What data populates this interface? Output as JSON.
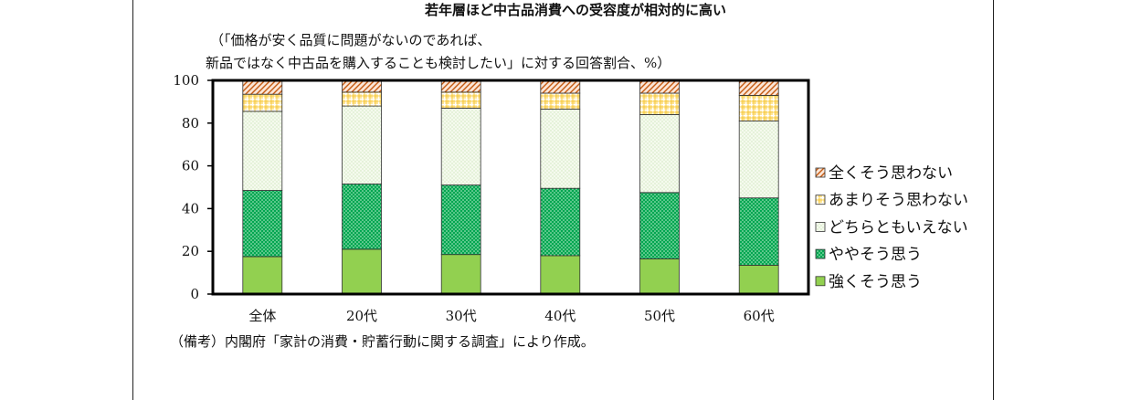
{
  "chart_data": {
    "type": "bar",
    "stacked": true,
    "title": "若年層ほど中古品消費への受容度が相対的に高い",
    "subtitle_line1": "（「価格が安く品質に問題がないのであれば、",
    "subtitle_line2": "新品ではなく中古品を購入することも検討したい」に対する回答割合、%）",
    "categories": [
      "全体",
      "20代",
      "30代",
      "40代",
      "50代",
      "60代"
    ],
    "ylim": [
      0,
      100
    ],
    "yticks": [
      "0",
      "20",
      "40",
      "60",
      "80",
      "100"
    ],
    "legend_position": "right",
    "series": [
      {
        "name": "強くそう思う",
        "values": [
          17.5,
          21,
          18.5,
          18,
          16.5,
          13.5
        ],
        "color": "#92d050"
      },
      {
        "name": "ややそう思う",
        "values": [
          31,
          30.5,
          32.5,
          31.5,
          31,
          31.5
        ],
        "color": "#00b050"
      },
      {
        "name": "どちらともいえない",
        "values": [
          37,
          36.5,
          36,
          37,
          36.5,
          36
        ],
        "color": "#f2f9e8"
      },
      {
        "name": "あまりそう思わない",
        "values": [
          8,
          6.5,
          7.5,
          7.5,
          10,
          12
        ],
        "color": "#ffd966"
      },
      {
        "name": "全くそう思わない",
        "values": [
          6.5,
          5.5,
          5.5,
          6,
          6,
          7
        ],
        "color": "#f4b183"
      }
    ],
    "note": "（備考）内閣府「家計の消費・貯蓄行動に関する調査」により作成。"
  }
}
